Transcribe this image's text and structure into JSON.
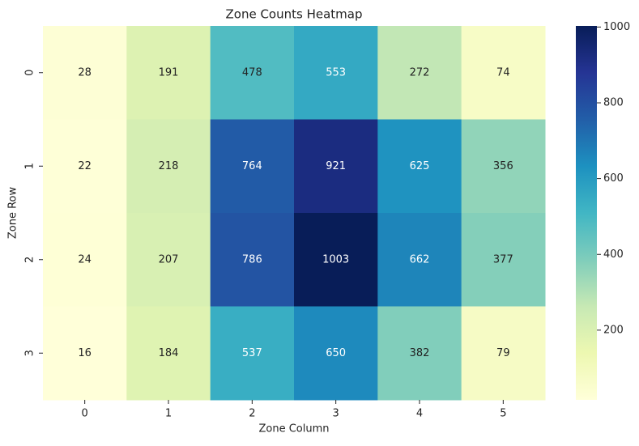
{
  "chart_data": {
    "type": "heatmap",
    "title": "Zone Counts Heatmap",
    "x_label": "Zone Column",
    "y_label": "Zone Row",
    "categories": [
      "0",
      "1",
      "2",
      "3",
      "4",
      "5"
    ],
    "rows": [
      "0",
      "1",
      "2",
      "3"
    ],
    "values": [
      [
        28,
        191,
        478,
        553,
        272,
        74
      ],
      [
        22,
        218,
        764,
        921,
        625,
        356
      ],
      [
        24,
        207,
        786,
        1003,
        662,
        377
      ],
      [
        16,
        184,
        537,
        650,
        382,
        79
      ]
    ],
    "clim": [
      16,
      1003
    ],
    "cticks": [
      200,
      400,
      600,
      800,
      1000
    ],
    "colorscale": [
      "#ffffd9",
      "#edf8b1",
      "#c7e9b4",
      "#7fcdbb",
      "#41b6c4",
      "#1d91c0",
      "#225ea8",
      "#253494",
      "#081d58"
    ]
  }
}
